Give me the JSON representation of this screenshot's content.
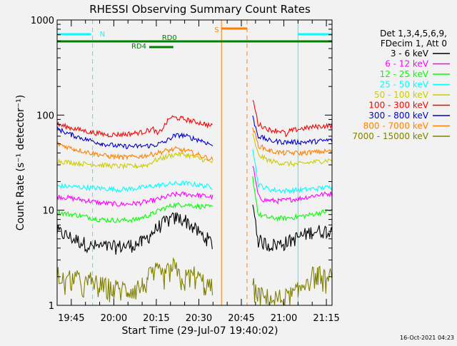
{
  "chart_data": {
    "type": "line",
    "title": "RHESSI Observing Summary Count Rates",
    "xlabel": "Start Time (29-Jul-07 19:40:02)",
    "ylabel": "Count Rate (s⁻¹ detector⁻¹)",
    "yscale": "log",
    "ylim": [
      1,
      1000
    ],
    "xlim_minutes_after_19_40": [
      0,
      97
    ],
    "yticks": [
      {
        "v": 1,
        "label": "1"
      },
      {
        "v": 10,
        "label": "10"
      },
      {
        "v": 100,
        "label": "100"
      },
      {
        "v": 1000,
        "label": "1000"
      }
    ],
    "xticks": [
      {
        "t": 5,
        "label": "19:45"
      },
      {
        "t": 20,
        "label": "20:00"
      },
      {
        "t": 35,
        "label": "20:15"
      },
      {
        "t": 50,
        "label": "20:30"
      },
      {
        "t": 65,
        "label": "20:45"
      },
      {
        "t": 80,
        "label": "21:00"
      },
      {
        "t": 95,
        "label": "21:15"
      }
    ],
    "legend": {
      "header": [
        "Det 1,3,4,5,6,9,",
        "FDecim 1, Att 0"
      ],
      "placement": "right"
    },
    "footer_stamp": "16-Oct-2021 04:23",
    "gap_minutes": [
      55.5,
      69
    ],
    "series": [
      {
        "name": "3 - 6 keV",
        "color": "#000000",
        "points": [
          [
            0,
            6
          ],
          [
            6,
            5
          ],
          [
            12,
            4.2
          ],
          [
            20,
            4.1
          ],
          [
            26,
            4.3
          ],
          [
            30,
            4.6
          ],
          [
            33,
            5.6
          ],
          [
            36,
            6.8
          ],
          [
            39,
            7.8
          ],
          [
            42,
            8.3
          ],
          [
            45,
            8
          ],
          [
            48,
            6.6
          ],
          [
            51,
            5.5
          ],
          [
            53,
            5
          ],
          [
            55,
            4.4
          ],
          [
            69,
            12
          ],
          [
            71,
            4.8
          ],
          [
            75,
            4.3
          ],
          [
            80,
            4.5
          ],
          [
            85,
            5.2
          ],
          [
            90,
            6
          ],
          [
            95,
            6.1
          ],
          [
            97,
            6
          ]
        ]
      },
      {
        "name": "6 - 12 keV",
        "color": "#ff00ff",
        "points": [
          [
            0,
            14
          ],
          [
            8,
            13
          ],
          [
            15,
            12
          ],
          [
            22,
            11.5
          ],
          [
            28,
            11.8
          ],
          [
            33,
            12.5
          ],
          [
            37,
            13.4
          ],
          [
            41,
            14.6
          ],
          [
            45,
            14.8
          ],
          [
            50,
            14.3
          ],
          [
            55,
            13.8
          ],
          [
            69,
            30
          ],
          [
            71,
            14
          ],
          [
            73,
            12.8
          ],
          [
            78,
            12.5
          ],
          [
            85,
            13.2
          ],
          [
            92,
            14.5
          ],
          [
            97,
            15
          ]
        ]
      },
      {
        "name": "12 - 25 keV",
        "color": "#00ff00",
        "points": [
          [
            0,
            9.5
          ],
          [
            8,
            8.8
          ],
          [
            15,
            8
          ],
          [
            22,
            7.8
          ],
          [
            28,
            8
          ],
          [
            33,
            9
          ],
          [
            37,
            10.3
          ],
          [
            41,
            11.3
          ],
          [
            45,
            11.5
          ],
          [
            50,
            11
          ],
          [
            55,
            10.7
          ],
          [
            69,
            22
          ],
          [
            71,
            9
          ],
          [
            75,
            8.3
          ],
          [
            80,
            8.2
          ],
          [
            88,
            8.8
          ],
          [
            94,
            9.6
          ],
          [
            97,
            10
          ]
        ]
      },
      {
        "name": "25 - 50 keV",
        "color": "#00ffff",
        "points": [
          [
            0,
            18
          ],
          [
            8,
            17.5
          ],
          [
            15,
            17
          ],
          [
            22,
            16.5
          ],
          [
            28,
            17
          ],
          [
            33,
            17.8
          ],
          [
            37,
            18.5
          ],
          [
            41,
            19
          ],
          [
            45,
            19.2
          ],
          [
            50,
            18.4
          ],
          [
            55,
            17.5
          ],
          [
            69,
            46
          ],
          [
            71,
            18.5
          ],
          [
            75,
            16.5
          ],
          [
            80,
            16
          ],
          [
            88,
            16.5
          ],
          [
            94,
            17.2
          ],
          [
            97,
            17.5
          ]
        ]
      },
      {
        "name": "50 - 100 keV",
        "color": "#cccc00",
        "points": [
          [
            0,
            33
          ],
          [
            8,
            31
          ],
          [
            15,
            30
          ],
          [
            22,
            29
          ],
          [
            28,
            29
          ],
          [
            32,
            30
          ],
          [
            34,
            33
          ],
          [
            38,
            36
          ],
          [
            42,
            39
          ],
          [
            46,
            38
          ],
          [
            50,
            35
          ],
          [
            55,
            32
          ],
          [
            69,
            62
          ],
          [
            71,
            38
          ],
          [
            75,
            33
          ],
          [
            80,
            31
          ],
          [
            85,
            30.5
          ],
          [
            90,
            32
          ],
          [
            94,
            33
          ],
          [
            97,
            34
          ]
        ]
      },
      {
        "name": "100 - 300 keV",
        "color": "#ff0000",
        "points": [
          [
            0,
            80
          ],
          [
            6,
            72
          ],
          [
            12,
            66
          ],
          [
            18,
            62
          ],
          [
            24,
            63
          ],
          [
            30,
            66
          ],
          [
            34,
            72
          ],
          [
            35.5,
            62
          ],
          [
            40,
            95
          ],
          [
            44,
            92
          ],
          [
            48,
            86
          ],
          [
            52,
            81
          ],
          [
            55,
            76
          ],
          [
            69,
            150
          ],
          [
            71,
            80
          ],
          [
            75,
            70
          ],
          [
            79,
            68
          ],
          [
            80,
            66
          ],
          [
            81,
            60
          ],
          [
            82,
            68
          ],
          [
            86,
            72
          ],
          [
            92,
            76
          ],
          [
            97,
            78
          ]
        ]
      },
      {
        "name": "300 - 800 keV",
        "color": "#0000cc",
        "points": [
          [
            0,
            72
          ],
          [
            5,
            62
          ],
          [
            10,
            56
          ],
          [
            16,
            50
          ],
          [
            22,
            47
          ],
          [
            28,
            47
          ],
          [
            34,
            48
          ],
          [
            38,
            52
          ],
          [
            41,
            60
          ],
          [
            44,
            62
          ],
          [
            47,
            58
          ],
          [
            51,
            54
          ],
          [
            55,
            48
          ],
          [
            69,
            95
          ],
          [
            71,
            60
          ],
          [
            75,
            54
          ],
          [
            80,
            52
          ],
          [
            86,
            52
          ],
          [
            92,
            53
          ],
          [
            97,
            55
          ]
        ]
      },
      {
        "name": "800 - 7000 keV",
        "color": "#ff8000",
        "points": [
          [
            0,
            50
          ],
          [
            6,
            44
          ],
          [
            12,
            40
          ],
          [
            18,
            37
          ],
          [
            24,
            36
          ],
          [
            30,
            37
          ],
          [
            34,
            39
          ],
          [
            38,
            42
          ],
          [
            42,
            44
          ],
          [
            46,
            42
          ],
          [
            50,
            38
          ],
          [
            55,
            34
          ],
          [
            69,
            75
          ],
          [
            71,
            48
          ],
          [
            75,
            42
          ],
          [
            80,
            40
          ],
          [
            86,
            40
          ],
          [
            92,
            41
          ],
          [
            97,
            42
          ]
        ]
      },
      {
        "name": "7000 - 15000 keV",
        "color": "#808000",
        "points": [
          [
            0,
            2
          ],
          [
            3,
            1.6
          ],
          [
            6,
            1.9
          ],
          [
            9,
            1.5
          ],
          [
            12,
            1.7
          ],
          [
            15,
            1.5
          ],
          [
            20,
            1.4
          ],
          [
            25,
            1.4
          ],
          [
            30,
            1.5
          ],
          [
            32,
            1.8
          ],
          [
            35,
            2.1
          ],
          [
            38,
            1.9
          ],
          [
            41,
            2.4
          ],
          [
            44,
            1.7
          ],
          [
            48,
            2
          ],
          [
            52,
            1.6
          ],
          [
            55,
            1.4
          ],
          [
            69,
            1.5
          ],
          [
            71,
            1.2
          ],
          [
            75,
            1.1
          ],
          [
            80,
            1.1
          ],
          [
            85,
            1.3
          ],
          [
            88,
            1.8
          ],
          [
            92,
            2
          ],
          [
            95,
            1.7
          ],
          [
            97,
            1.9
          ]
        ]
      }
    ],
    "status_bars": [
      {
        "label": "N",
        "color": "#00ffff",
        "row": 1,
        "segments": [
          [
            0,
            12
          ],
          [
            85,
            97
          ]
        ]
      },
      {
        "label": "S",
        "color": "#ff8000",
        "row": 0,
        "segments": [
          [
            58,
            67
          ]
        ]
      },
      {
        "label": "RD0",
        "color": "#008000",
        "row": 2,
        "segments": [
          [
            0,
            97
          ]
        ]
      },
      {
        "label": "RD4",
        "color": "#008000",
        "row": 3,
        "segments": [
          [
            32.5,
            41
          ]
        ]
      }
    ],
    "vlines": [
      {
        "t": 0,
        "color": "#00ffff",
        "style": "solid"
      },
      {
        "t": 12.5,
        "color": "#00ffff",
        "style": "dash"
      },
      {
        "t": 85,
        "color": "#00ffff",
        "style": "solid"
      },
      {
        "t": 97,
        "color": "#00ffff",
        "style": "dash"
      },
      {
        "t": 58,
        "color": "#ff8000",
        "style": "solid"
      },
      {
        "t": 67,
        "color": "#ff8000",
        "style": "dash"
      }
    ],
    "colors": {
      "axis": "#000000",
      "background": "#f2f2f2"
    }
  }
}
